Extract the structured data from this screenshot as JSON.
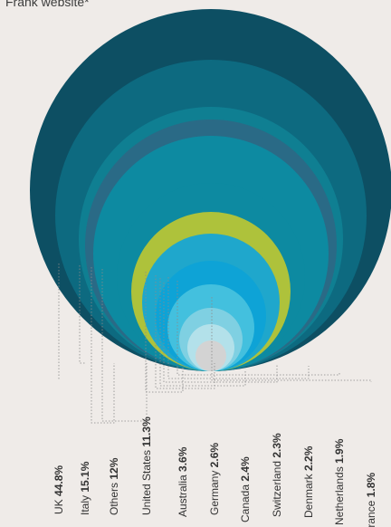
{
  "title": "Frank website*",
  "chart_data": {
    "type": "nested-circles",
    "unit": "%",
    "series": [
      {
        "label": "UK",
        "value": 44.8,
        "value_text": "44.8%",
        "color": "#0d4f63"
      },
      {
        "label": "Italy",
        "value": 15.1,
        "value_text": "15.1%",
        "color": "#0d6a80"
      },
      {
        "label": "Others",
        "value": 12,
        "value_text": "12%",
        "color": "#0f7f92"
      },
      {
        "label": "United States",
        "value": 11.3,
        "value_text": "11.3%",
        "color": "#2a6a86"
      },
      {
        "label": "Australia",
        "value": 3.6,
        "value_text": "3.6%",
        "color": "#0d8aa1"
      },
      {
        "label": "Germany",
        "value": 2.6,
        "value_text": "2.6%",
        "color": "#aec23b"
      },
      {
        "label": "Canada",
        "value": 2.4,
        "value_text": "2.4%",
        "color": "#1fa7cc"
      },
      {
        "label": "Switzerland",
        "value": 2.3,
        "value_text": "2.3%",
        "color": "#0ea3d6"
      },
      {
        "label": "Denmark",
        "value": 2.2,
        "value_text": "2.2%",
        "color": "#43c0de"
      },
      {
        "label": "Netherlands",
        "value": 1.9,
        "value_text": "1.9%",
        "color": "#7fd0e2"
      },
      {
        "label": "France",
        "value": 1.8,
        "value_text": "1.8%",
        "color": "#b3e1ea"
      }
    ],
    "innermost_color": "#d3d3d3",
    "center_color": "#f4f2f0"
  }
}
